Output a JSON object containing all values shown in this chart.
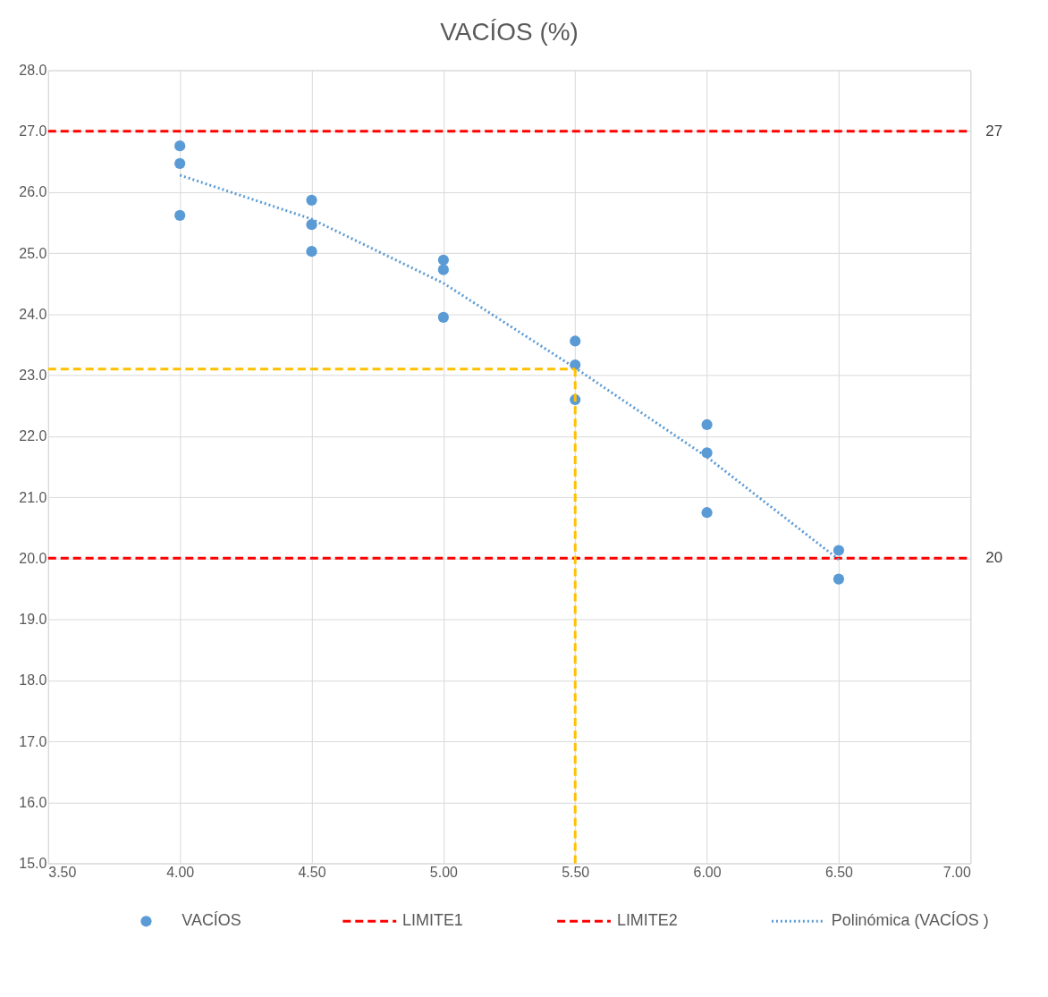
{
  "chart_data": {
    "type": "scatter",
    "title": "VACÍOS (%)",
    "x": [
      4.0,
      4.0,
      4.0,
      4.5,
      4.5,
      4.5,
      5.0,
      5.0,
      5.0,
      5.5,
      5.5,
      5.5,
      6.0,
      6.0,
      6.0,
      6.5,
      6.5
    ],
    "series": [
      {
        "name": "VACÍOS",
        "marker": "circle",
        "color": "#5b9bd5",
        "values": [
          26.76,
          26.47,
          25.62,
          25.87,
          25.47,
          25.03,
          24.89,
          24.73,
          23.95,
          23.56,
          23.17,
          22.6,
          22.19,
          21.73,
          20.75,
          20.13,
          19.66
        ]
      },
      {
        "name": "LIMITE1",
        "type": "line",
        "color": "#ff0000",
        "line_style": "dashed",
        "x": [
          3.5,
          7.0
        ],
        "values": [
          27,
          27
        ],
        "value_labels": [
          null,
          "27"
        ]
      },
      {
        "name": "LIMITE2",
        "type": "line",
        "color": "#ff0000",
        "line_style": "dashed",
        "x": [
          3.5,
          7.0
        ],
        "values": [
          20,
          20
        ],
        "value_labels": [
          null,
          "20"
        ]
      },
      {
        "name": "Polinómica (VACÍOS )",
        "type": "line",
        "color": "#5b9bd5",
        "line_style": "dotted",
        "x": [
          4.0,
          4.5,
          5.0,
          5.5,
          6.0,
          6.5
        ],
        "values": [
          26.28,
          25.56,
          24.51,
          23.12,
          21.66,
          19.98
        ]
      },
      {
        "type": "line",
        "color": "#ffc000",
        "line_style": "dashed",
        "x": [
          3.5,
          5.5
        ],
        "values": [
          23.1,
          23.1
        ]
      },
      {
        "type": "line",
        "color": "#ffc000",
        "line_style": "dashed",
        "x": [
          5.5,
          5.5
        ],
        "values": [
          15,
          23.1
        ]
      }
    ],
    "xlim": [
      3.5,
      7.0
    ],
    "xticks": [
      {
        "value": 3.5,
        "label": "3.50"
      },
      {
        "value": 4.0,
        "label": "4.00"
      },
      {
        "value": 4.5,
        "label": "4.50"
      },
      {
        "value": 5.0,
        "label": "5.00"
      },
      {
        "value": 5.5,
        "label": "5.50"
      },
      {
        "value": 6.0,
        "label": "6.00"
      },
      {
        "value": 6.5,
        "label": "6.50"
      },
      {
        "value": 7.0,
        "label": "7.00"
      }
    ],
    "ylim": [
      15,
      28
    ],
    "yticks": [
      {
        "value": 15,
        "label": "15.0"
      },
      {
        "value": 16,
        "label": "16.0"
      },
      {
        "value": 17,
        "label": "17.0"
      },
      {
        "value": 18,
        "label": "18.0"
      },
      {
        "value": 19,
        "label": "19.0"
      },
      {
        "value": 20,
        "label": "20.0"
      },
      {
        "value": 21,
        "label": "21.0"
      },
      {
        "value": 22,
        "label": "22.0"
      },
      {
        "value": 23,
        "label": "23.0"
      },
      {
        "value": 24,
        "label": "24.0"
      },
      {
        "value": 25,
        "label": "25.0"
      },
      {
        "value": 26,
        "label": "26.0"
      },
      {
        "value": 27,
        "label": "27.0"
      },
      {
        "value": 28,
        "label": "28.0"
      }
    ],
    "grid": true,
    "legend": "bottom"
  }
}
